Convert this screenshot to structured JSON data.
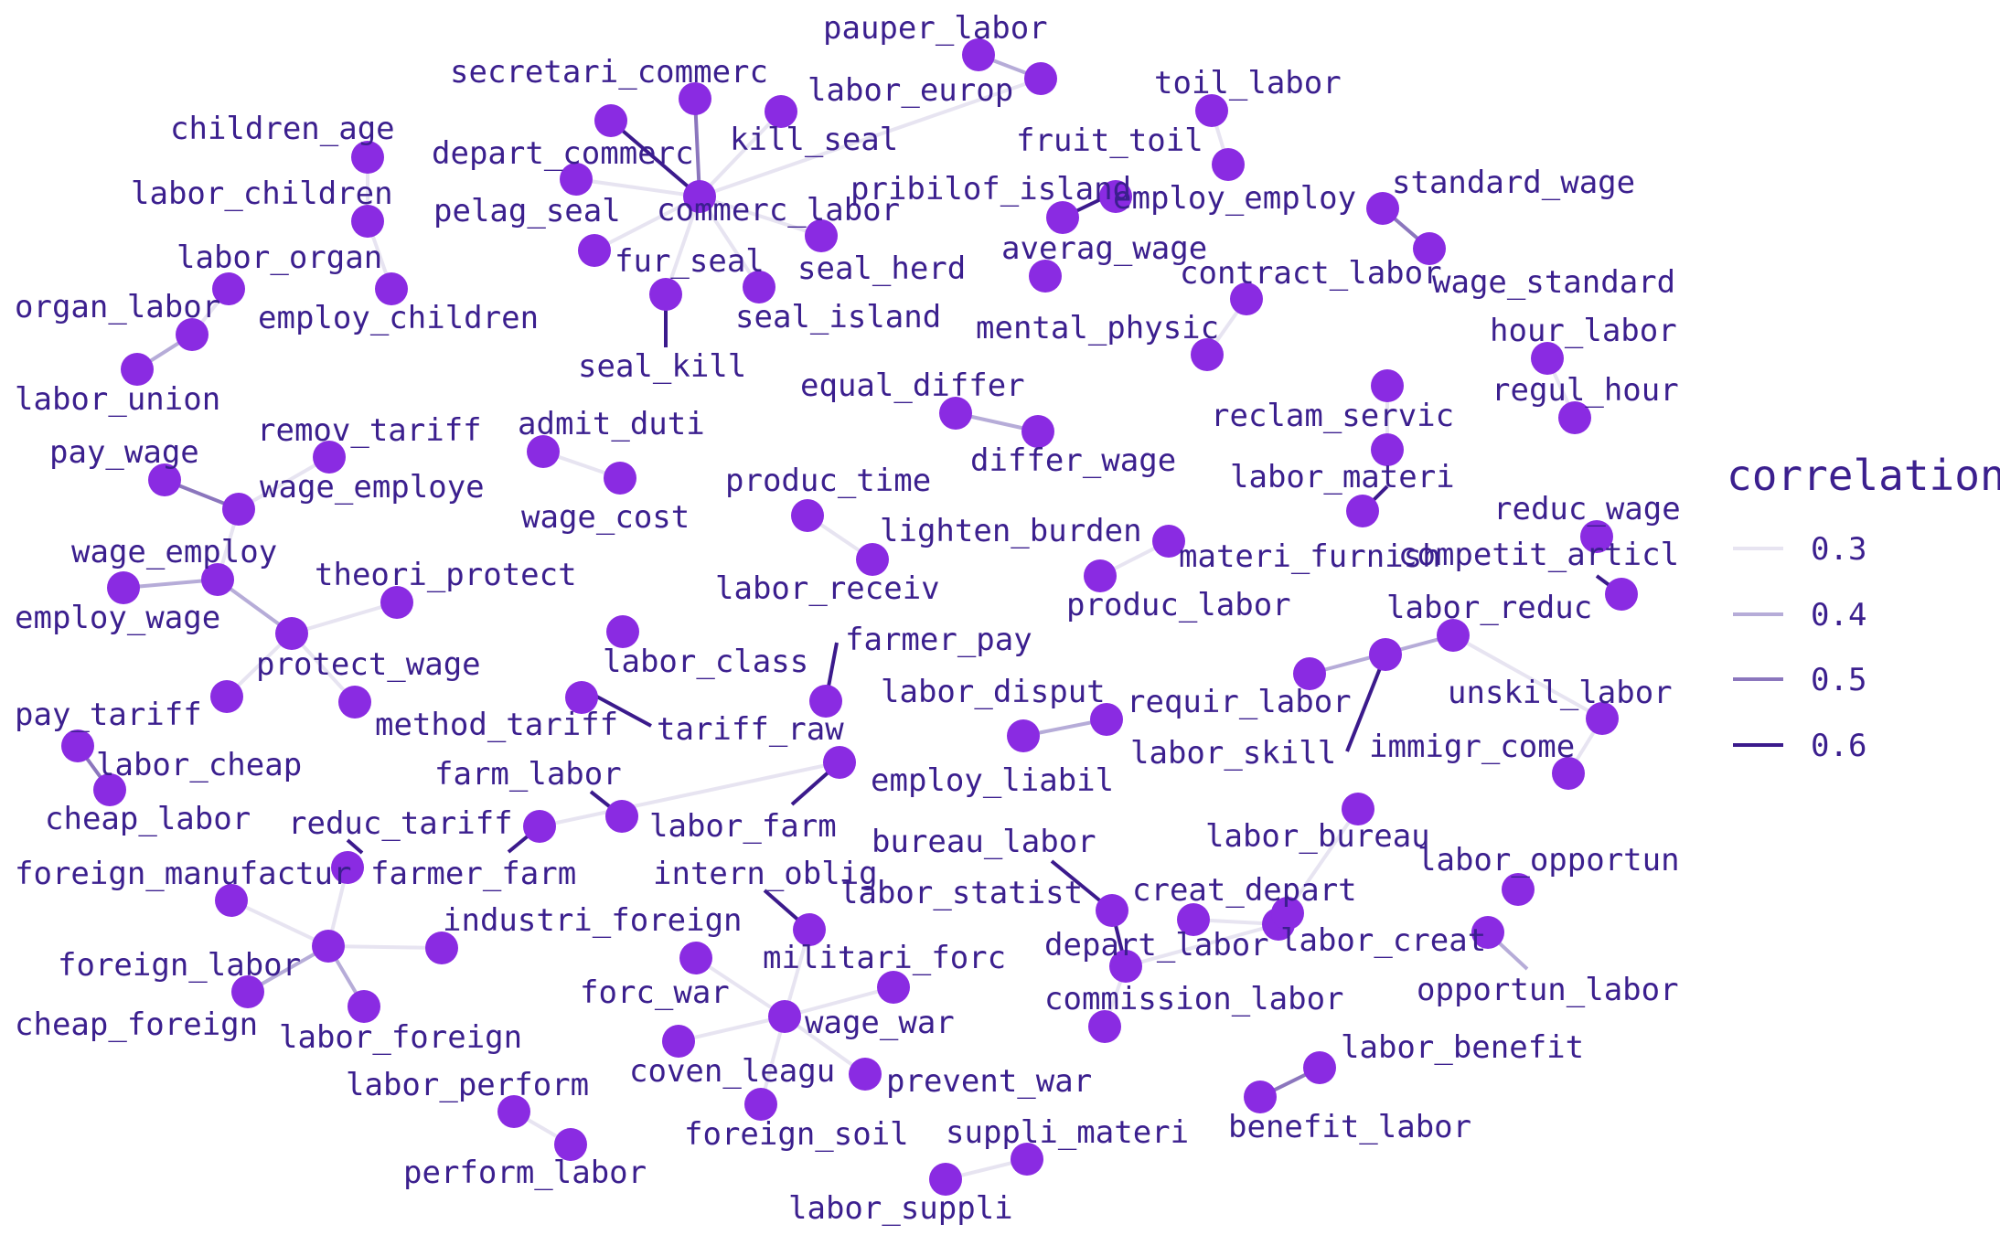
{
  "chart_data": {
    "type": "network",
    "legend": {
      "title": "correlation",
      "position": "right",
      "entries": [
        {
          "label": "0.3",
          "value": 0.3,
          "color": "#e7e4f1"
        },
        {
          "label": "0.4",
          "value": 0.4,
          "color": "#b6acd8"
        },
        {
          "label": "0.5",
          "value": 0.5,
          "color": "#8b76bd"
        },
        {
          "label": "0.6",
          "value": 0.6,
          "color": "#3b1a8c"
        }
      ]
    },
    "node_color": "#8a2be2",
    "nodes": [
      {
        "id": "pauper_labor"
      },
      {
        "id": "labor_europ"
      },
      {
        "id": "secretari_commerc"
      },
      {
        "id": "kill_seal"
      },
      {
        "id": "depart_commerc"
      },
      {
        "id": "commerc_labor"
      },
      {
        "id": "pelag_seal"
      },
      {
        "id": "fur_seal"
      },
      {
        "id": "seal_herd"
      },
      {
        "id": "seal_island"
      },
      {
        "id": "seal_kill"
      },
      {
        "id": "toil_labor"
      },
      {
        "id": "fruit_toil"
      },
      {
        "id": "pribilof_island"
      },
      {
        "id": "employ_employ"
      },
      {
        "id": "children_age"
      },
      {
        "id": "labor_children"
      },
      {
        "id": "employ_children"
      },
      {
        "id": "labor_organ"
      },
      {
        "id": "organ_labor"
      },
      {
        "id": "labor_union"
      },
      {
        "id": "standard_wage"
      },
      {
        "id": "wage_standard"
      },
      {
        "id": "averag_wage"
      },
      {
        "id": "contract_labor"
      },
      {
        "id": "mental_physic"
      },
      {
        "id": "hour_labor"
      },
      {
        "id": "regul_hour"
      },
      {
        "id": "equal_differ"
      },
      {
        "id": "differ_wage"
      },
      {
        "id": "reclam_servic"
      },
      {
        "id": "labor_materi"
      },
      {
        "id": "materi_furnish"
      },
      {
        "id": "remov_tariff"
      },
      {
        "id": "pay_wage"
      },
      {
        "id": "wage_employe"
      },
      {
        "id": "wage_employ"
      },
      {
        "id": "employ_wage"
      },
      {
        "id": "theori_protect"
      },
      {
        "id": "protect_wage"
      },
      {
        "id": "pay_tariff"
      },
      {
        "id": "method_tariff"
      },
      {
        "id": "admit_duti"
      },
      {
        "id": "wage_cost"
      },
      {
        "id": "produc_time"
      },
      {
        "id": "labor_receiv"
      },
      {
        "id": "lighten_burden"
      },
      {
        "id": "produc_labor"
      },
      {
        "id": "reduc_wage"
      },
      {
        "id": "competit_articl"
      },
      {
        "id": "labor_class"
      },
      {
        "id": "tariff_raw"
      },
      {
        "id": "farmer_pay"
      },
      {
        "id": "labor_reduc"
      },
      {
        "id": "requir_labor"
      },
      {
        "id": "labor_skill"
      },
      {
        "id": "labor_disput"
      },
      {
        "id": "employ_liabil"
      },
      {
        "id": "unskil_labor"
      },
      {
        "id": "immigr_come"
      },
      {
        "id": "labor_cheap"
      },
      {
        "id": "cheap_labor"
      },
      {
        "id": "farm_labor"
      },
      {
        "id": "labor_farm"
      },
      {
        "id": "farmer_farm"
      },
      {
        "id": "reduc_tariff"
      },
      {
        "id": "foreign_manufactur"
      },
      {
        "id": "foreign_labor"
      },
      {
        "id": "industri_foreign"
      },
      {
        "id": "cheap_foreign"
      },
      {
        "id": "labor_foreign"
      },
      {
        "id": "intern_oblig"
      },
      {
        "id": "militari_forc"
      },
      {
        "id": "forc_war"
      },
      {
        "id": "wage_war"
      },
      {
        "id": "coven_leagu"
      },
      {
        "id": "prevent_war"
      },
      {
        "id": "foreign_soil"
      },
      {
        "id": "bureau_labor"
      },
      {
        "id": "labor_statist"
      },
      {
        "id": "creat_depart"
      },
      {
        "id": "depart_labor"
      },
      {
        "id": "labor_creat"
      },
      {
        "id": "commission_labor"
      },
      {
        "id": "labor_bureau"
      },
      {
        "id": "labor_opportun"
      },
      {
        "id": "opportun_labor"
      },
      {
        "id": "labor_benefit"
      },
      {
        "id": "benefit_labor"
      },
      {
        "id": "labor_perform"
      },
      {
        "id": "perform_labor"
      },
      {
        "id": "suppli_materi"
      },
      {
        "id": "labor_suppli"
      }
    ],
    "edges": [
      {
        "source": "pauper_labor",
        "target": "labor_europ",
        "correlation": 0.38
      },
      {
        "source": "commerc_labor",
        "target": "depart_commerc",
        "correlation": 0.6
      },
      {
        "source": "commerc_labor",
        "target": "secretari_commerc",
        "correlation": 0.48
      },
      {
        "source": "commerc_labor",
        "target": "kill_seal",
        "correlation": 0.32
      },
      {
        "source": "commerc_labor",
        "target": "pelag_seal",
        "correlation": 0.3
      },
      {
        "source": "commerc_labor",
        "target": "fur_seal",
        "correlation": 0.3
      },
      {
        "source": "commerc_labor",
        "target": "seal_herd",
        "correlation": 0.32
      },
      {
        "source": "commerc_labor",
        "target": "seal_island",
        "correlation": 0.35
      },
      {
        "source": "commerc_labor",
        "target": "seal_kill",
        "correlation": 0.3
      },
      {
        "source": "commerc_labor",
        "target": "labor_europ",
        "correlation": 0.3
      },
      {
        "source": "seal_kill",
        "target": "fur_seal",
        "correlation": 0.62
      },
      {
        "source": "toil_labor",
        "target": "fruit_toil",
        "correlation": 0.3
      },
      {
        "source": "pribilof_island",
        "target": "employ_employ",
        "correlation": 0.6
      },
      {
        "source": "children_age",
        "target": "labor_children",
        "correlation": 0.3
      },
      {
        "source": "labor_children",
        "target": "employ_children",
        "correlation": 0.35
      },
      {
        "source": "organ_labor",
        "target": "labor_union",
        "correlation": 0.45
      },
      {
        "source": "labor_organ",
        "target": "organ_labor",
        "correlation": 0.3
      },
      {
        "source": "standard_wage",
        "target": "wage_standard",
        "correlation": 0.5
      },
      {
        "source": "contract_labor",
        "target": "mental_physic",
        "correlation": 0.3
      },
      {
        "source": "hour_labor",
        "target": "regul_hour",
        "correlation": 0.3
      },
      {
        "source": "equal_differ",
        "target": "differ_wage",
        "correlation": 0.45
      },
      {
        "source": "labor_materi",
        "target": "materi_furnish",
        "correlation": 0.62
      },
      {
        "source": "reclam_servic",
        "target": "labor_materi",
        "correlation": 0.3
      },
      {
        "source": "pay_wage",
        "target": "wage_employe",
        "correlation": 0.5
      },
      {
        "source": "remov_tariff",
        "target": "wage_employe",
        "correlation": 0.3
      },
      {
        "source": "wage_employe",
        "target": "wage_employ",
        "correlation": 0.3
      },
      {
        "source": "wage_employ",
        "target": "employ_wage",
        "correlation": 0.45
      },
      {
        "source": "wage_employ",
        "target": "protect_wage",
        "correlation": 0.45
      },
      {
        "source": "theori_protect",
        "target": "protect_wage",
        "correlation": 0.3
      },
      {
        "source": "protect_wage",
        "target": "pay_tariff",
        "correlation": 0.3
      },
      {
        "source": "protect_wage",
        "target": "method_tariff",
        "correlation": 0.3
      },
      {
        "source": "admit_duti",
        "target": "wage_cost",
        "correlation": 0.3
      },
      {
        "source": "produc_time",
        "target": "labor_receiv",
        "correlation": 0.35
      },
      {
        "source": "lighten_burden",
        "target": "produc_labor",
        "correlation": 0.3
      },
      {
        "source": "reduc_wage",
        "target": "competit_articl",
        "correlation": 0.62
      },
      {
        "source": "labor_class",
        "target": "tariff_raw",
        "correlation": 0.6
      },
      {
        "source": "farmer_pay",
        "target": "tariff_raw",
        "correlation": 0.62
      },
      {
        "source": "labor_reduc",
        "target": "requir_labor",
        "correlation": 0.4
      },
      {
        "source": "labor_reduc",
        "target": "labor_skill",
        "correlation": 0.62
      },
      {
        "source": "labor_reduc",
        "target": "unskil_labor",
        "correlation": 0.3
      },
      {
        "source": "labor_disput",
        "target": "employ_liabil",
        "correlation": 0.4
      },
      {
        "source": "unskil_labor",
        "target": "immigr_come",
        "correlation": 0.3
      },
      {
        "source": "labor_cheap",
        "target": "cheap_labor",
        "correlation": 0.5
      },
      {
        "source": "farm_labor",
        "target": "labor_farm",
        "correlation": 0.62
      },
      {
        "source": "labor_farm",
        "target": "farmer_farm",
        "correlation": 0.3
      },
      {
        "source": "farmer_farm",
        "target": "intern_oblig",
        "correlation": 0.62
      },
      {
        "source": "labor_farm",
        "target": "employ_liabil",
        "correlation": 0.62
      },
      {
        "source": "reduc_tariff",
        "target": "foreign_manufactur",
        "correlation": 0.6
      },
      {
        "source": "foreign_labor",
        "target": "foreign_manufactur",
        "correlation": 0.3
      },
      {
        "source": "foreign_labor",
        "target": "reduc_tariff",
        "correlation": 0.3
      },
      {
        "source": "foreign_labor",
        "target": "industri_foreign",
        "correlation": 0.3
      },
      {
        "source": "foreign_labor",
        "target": "cheap_foreign",
        "correlation": 0.4
      },
      {
        "source": "foreign_labor",
        "target": "labor_foreign",
        "correlation": 0.45
      },
      {
        "source": "intern_oblig",
        "target": "militari_forc",
        "correlation": 0.6
      },
      {
        "source": "wage_war",
        "target": "forc_war",
        "correlation": 0.3
      },
      {
        "source": "wage_war",
        "target": "militari_forc",
        "correlation": 0.3
      },
      {
        "source": "wage_war",
        "target": "coven_leagu",
        "correlation": 0.35
      },
      {
        "source": "wage_war",
        "target": "prevent_war",
        "correlation": 0.35
      },
      {
        "source": "wage_war",
        "target": "foreign_soil",
        "correlation": 0.3
      },
      {
        "source": "wage_war",
        "target": "intern_oblig",
        "correlation": 0.3
      },
      {
        "source": "bureau_labor",
        "target": "depart_labor",
        "correlation": 0.62
      },
      {
        "source": "labor_statist",
        "target": "depart_labor",
        "correlation": 0.62
      },
      {
        "source": "creat_depart",
        "target": "depart_labor",
        "correlation": 0.35
      },
      {
        "source": "creat_depart",
        "target": "labor_creat",
        "correlation": 0.3
      },
      {
        "source": "creat_depart",
        "target": "labor_bureau",
        "correlation": 0.3
      },
      {
        "source": "creat_depart",
        "target": "labor_statist",
        "correlation": 0.35
      },
      {
        "source": "depart_labor",
        "target": "commission_labor",
        "correlation": 0.3
      },
      {
        "source": "labor_opportun",
        "target": "opportun_labor",
        "correlation": 0.4
      },
      {
        "source": "labor_benefit",
        "target": "benefit_labor",
        "correlation": 0.5
      },
      {
        "source": "labor_perform",
        "target": "perform_labor",
        "correlation": 0.3
      },
      {
        "source": "suppli_materi",
        "target": "labor_suppli",
        "correlation": 0.3
      }
    ]
  }
}
